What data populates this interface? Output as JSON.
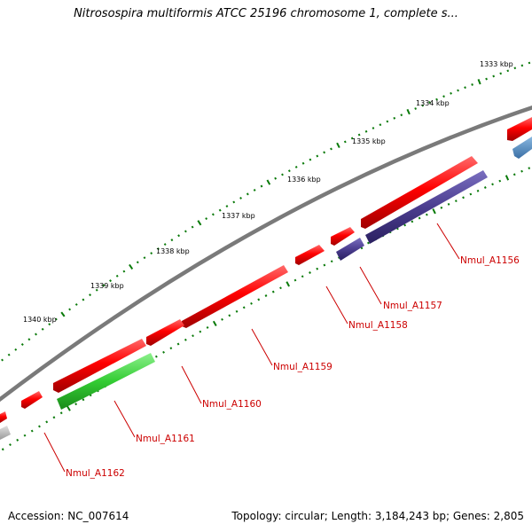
{
  "title": "Nitrosospira multiformis ATCC 25196 chromosome 1, complete s...",
  "footer": {
    "accession": "Accession: NC_007614",
    "summary": "Topology: circular; Length: 3,184,243 bp; Genes: 2,805"
  },
  "ruler_labels": [
    "1333 kbp",
    "1334 kbp",
    "1335 kbp",
    "1336 kbp",
    "1337 kbp",
    "1338 kbp",
    "1339 kbp",
    "1340 kbp"
  ],
  "gene_labels": [
    "Nmul_A1156",
    "Nmul_A1157",
    "Nmul_A1158",
    "Nmul_A1159",
    "Nmul_A1160",
    "Nmul_A1161",
    "Nmul_A1162"
  ],
  "colors": {
    "backbone": "#808080",
    "cds_red": "#ff0000",
    "cds_green": "#33cc33",
    "cds_purple": "#4b3d8f",
    "cds_blue": "#4a7fb5",
    "cds_gray": "#b0b0b0",
    "ticks": "#0a7a0a",
    "label": "#cc0000"
  }
}
